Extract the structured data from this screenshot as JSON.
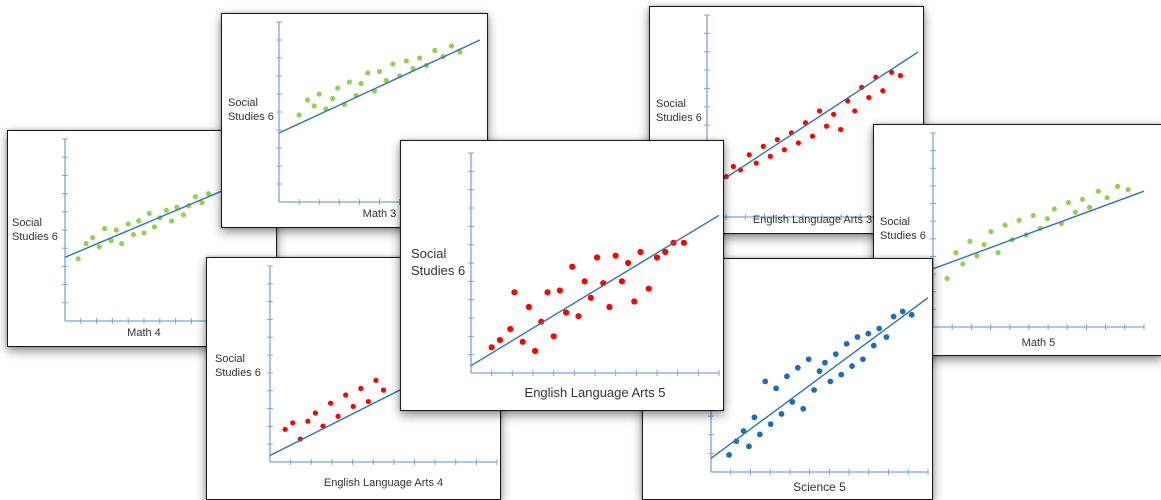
{
  "chart_data": [
    {
      "type": "scatter",
      "id": "math4",
      "ylabel_lines": [
        "Social",
        "Studies 6"
      ],
      "xlabel": "Math 4",
      "point_color": "#92d050",
      "line_color": "#2e75b6",
      "xlim": [
        0,
        12
      ],
      "ylim": [
        0,
        12
      ],
      "trend": {
        "x": [
          0,
          12
        ],
        "y": [
          4.2,
          8.6
        ]
      },
      "x": [
        1,
        1.6,
        2.1,
        2.6,
        3,
        3.5,
        3.9,
        4.3,
        4.8,
        5.2,
        5.6,
        6,
        6.4,
        6.8,
        7.2,
        7.7,
        8.1,
        8.5,
        9,
        9.4,
        9.9,
        10.4,
        10.9
      ],
      "y": [
        4.1,
        5.1,
        5.5,
        4.9,
        6.1,
        5.3,
        6.0,
        5.1,
        6.4,
        5.7,
        6.6,
        5.8,
        7.1,
        6.2,
        6.8,
        7.3,
        6.6,
        7.5,
        7.0,
        7.6,
        8.2,
        7.8,
        8.4
      ]
    },
    {
      "type": "scatter",
      "id": "math3",
      "ylabel_lines": [
        "Social",
        "Studies 6"
      ],
      "xlabel": "Math 3",
      "point_color": "#92d050",
      "line_color": "#2e75b6",
      "xlim": [
        0,
        12
      ],
      "ylim": [
        0,
        12
      ],
      "trend": {
        "x": [
          0,
          12
        ],
        "y": [
          4.6,
          10.8
        ]
      },
      "x": [
        1.2,
        1.7,
        2.1,
        2.4,
        2.8,
        3.2,
        3.5,
        3.9,
        4.2,
        4.6,
        4.9,
        5.3,
        5.7,
        6.0,
        6.4,
        6.8,
        7.2,
        7.6,
        8.0,
        8.4,
        8.8,
        9.3,
        9.8,
        10.3,
        10.8
      ],
      "y": [
        5.8,
        6.8,
        6.4,
        7.2,
        6.2,
        6.9,
        7.6,
        6.5,
        8.0,
        7.1,
        7.9,
        8.6,
        7.4,
        8.7,
        8.1,
        9.2,
        8.4,
        9.4,
        8.9,
        9.6,
        9.1,
        10.1,
        9.7,
        10.4,
        10.0
      ]
    },
    {
      "type": "scatter",
      "id": "ela3",
      "ylabel_lines": [
        "Social",
        "Studies 6"
      ],
      "xlabel": "English Language Arts 3",
      "point_color": "#ff0000",
      "line_color": "#2e75b6",
      "xlim": [
        0,
        12
      ],
      "ylim": [
        0,
        12
      ],
      "trend": {
        "x": [
          0,
          12
        ],
        "y": [
          1.6,
          9.8
        ]
      },
      "x": [
        1.1,
        1.5,
        1.9,
        2.4,
        2.8,
        3.2,
        3.6,
        4.0,
        4.4,
        4.8,
        5.2,
        5.6,
        6.0,
        6.4,
        6.8,
        7.2,
        7.6,
        8.0,
        8.4,
        8.8,
        9.2,
        9.6,
        10.0,
        10.5,
        11.0
      ],
      "y": [
        2.4,
        3.0,
        2.8,
        3.7,
        3.2,
        4.2,
        3.6,
        4.6,
        4.0,
        5.0,
        4.4,
        5.6,
        4.8,
        6.3,
        5.4,
        6.1,
        5.2,
        6.9,
        6.3,
        7.7,
        7.1,
        8.3,
        7.5,
        8.6,
        8.4
      ]
    },
    {
      "type": "scatter",
      "id": "math5",
      "ylabel_lines": [
        "Social",
        "Studies 6"
      ],
      "xlabel": "Math 5",
      "point_color": "#92d050",
      "line_color": "#2e75b6",
      "xlim": [
        0,
        12
      ],
      "ylim": [
        0,
        12
      ],
      "trend": {
        "x": [
          0,
          12
        ],
        "y": [
          3.6,
          8.4
        ]
      },
      "x": [
        0.8,
        1.3,
        1.7,
        2.1,
        2.5,
        2.9,
        3.3,
        3.7,
        4.1,
        4.5,
        4.9,
        5.3,
        5.7,
        6.1,
        6.5,
        6.9,
        7.3,
        7.7,
        8.1,
        8.5,
        8.9,
        9.4,
        9.9,
        10.5,
        11.1
      ],
      "y": [
        3.0,
        4.6,
        3.9,
        5.3,
        4.4,
        5.1,
        5.9,
        4.6,
        6.3,
        5.4,
        6.6,
        5.7,
        6.9,
        6.1,
        6.7,
        7.3,
        6.4,
        7.7,
        7.1,
        7.9,
        7.4,
        8.4,
        8.0,
        8.7,
        8.5
      ]
    },
    {
      "type": "scatter",
      "id": "ela4",
      "ylabel_lines": [
        "Social",
        "Studies 6"
      ],
      "xlabel": "English Language Arts 4",
      "point_color": "#ff0000",
      "line_color": "#2e75b6",
      "xlim": [
        0,
        12
      ],
      "ylim": [
        0,
        12
      ],
      "trend": {
        "x": [
          0,
          12
        ],
        "y": [
          0.4,
          7.4
        ]
      },
      "x": [
        0.8,
        1.2,
        1.6,
        2.0,
        2.4,
        2.8,
        3.2,
        3.6,
        4.0,
        4.4,
        4.8,
        5.2,
        5.6,
        6.0
      ],
      "y": [
        2.0,
        2.4,
        1.4,
        2.5,
        3.0,
        2.2,
        3.6,
        2.8,
        4.1,
        3.4,
        4.5,
        3.7,
        5.0,
        4.4
      ]
    },
    {
      "type": "scatter",
      "id": "ela5",
      "ylabel_lines": [
        "Social",
        "Studies 6"
      ],
      "xlabel": "English Language Arts 5",
      "point_color": "#ff0000",
      "line_color": "#2e75b6",
      "xlim": [
        0,
        12
      ],
      "ylim": [
        0,
        12
      ],
      "trend": {
        "x": [
          0,
          12
        ],
        "y": [
          0.4,
          8.6
        ]
      },
      "x": [
        1.0,
        1.4,
        1.9,
        2.1,
        2.5,
        2.8,
        3.1,
        3.4,
        3.7,
        4.0,
        4.3,
        4.6,
        4.9,
        5.2,
        5.5,
        5.8,
        6.1,
        6.4,
        6.7,
        7.0,
        7.3,
        7.6,
        7.9,
        8.2,
        8.6,
        9.0,
        9.4,
        9.8,
        10.3
      ],
      "y": [
        1.4,
        1.8,
        2.4,
        4.4,
        1.7,
        3.6,
        1.2,
        2.8,
        4.4,
        2.0,
        4.5,
        3.3,
        5.8,
        3.1,
        5.0,
        4.1,
        6.3,
        4.9,
        3.6,
        6.4,
        5.0,
        6.0,
        3.9,
        6.6,
        4.6,
        6.3,
        6.6,
        7.1,
        7.1
      ]
    },
    {
      "type": "scatter",
      "id": "science5",
      "ylabel_lines": [],
      "xlabel": "Science 5",
      "point_color": "#1f6eb4",
      "line_color": "#2e75b6",
      "xlim": [
        0,
        12
      ],
      "ylim": [
        0,
        12
      ],
      "trend": {
        "x": [
          0,
          12
        ],
        "y": [
          0.8,
          10.2
        ]
      },
      "x": [
        1.0,
        1.4,
        1.8,
        2.1,
        2.4,
        2.7,
        3.0,
        3.3,
        3.6,
        3.9,
        4.2,
        4.5,
        4.8,
        5.1,
        5.4,
        5.7,
        6.0,
        6.3,
        6.6,
        6.9,
        7.2,
        7.5,
        7.8,
        8.1,
        8.4,
        8.7,
        9.0,
        9.3,
        9.7,
        10.1,
        10.6,
        11.1
      ],
      "y": [
        1.0,
        1.8,
        2.4,
        1.5,
        3.2,
        2.2,
        5.3,
        2.8,
        4.9,
        3.4,
        5.6,
        4.1,
        6.1,
        3.7,
        6.6,
        4.8,
        5.9,
        6.4,
        5.3,
        6.9,
        5.7,
        7.5,
        6.2,
        7.9,
        6.6,
        8.1,
        7.4,
        8.4,
        7.9,
        9.1,
        9.4,
        9.2
      ]
    }
  ]
}
